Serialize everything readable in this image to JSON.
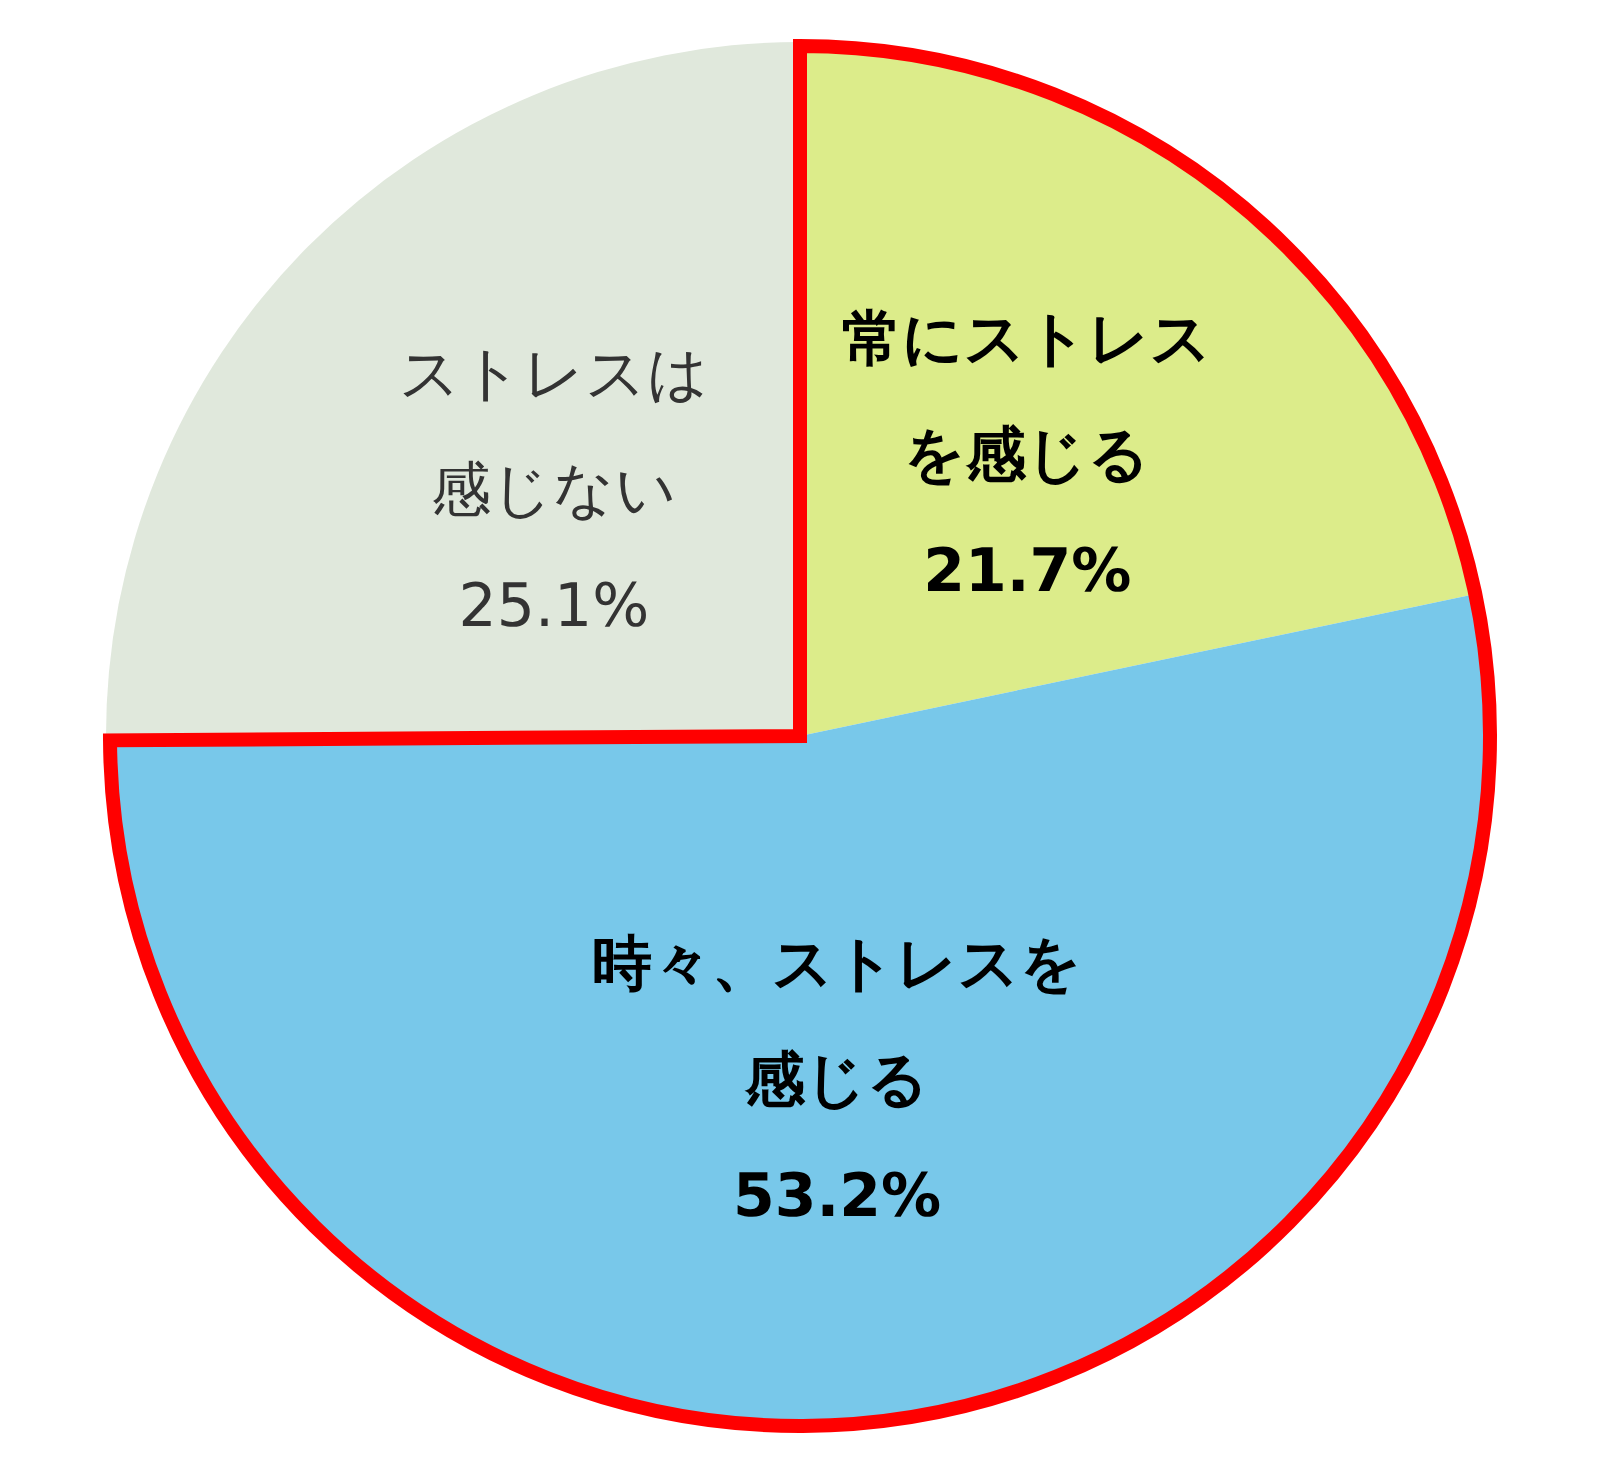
{
  "chart_data": {
    "type": "pie",
    "categories": [
      "常にストレスを感じる",
      "時々、ストレスを感じる",
      "ストレスは感じない"
    ],
    "values": [
      21.7,
      53.2,
      25.1
    ],
    "value_labels": [
      "21.7%",
      "53.2%",
      "25.1%"
    ],
    "colors": [
      "#dcec8a",
      "#78c8ea",
      "#e0e8dc"
    ]
  }
}
